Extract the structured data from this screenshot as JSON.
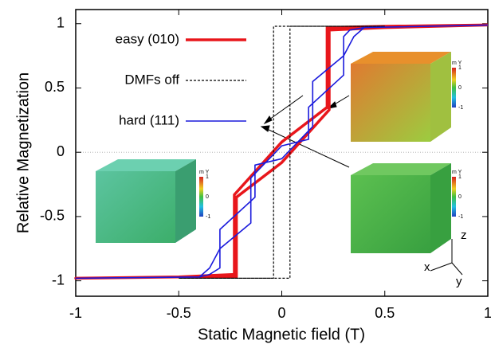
{
  "chart_data": {
    "type": "line",
    "xlabel": "Static Magnetic field (T)",
    "ylabel": "Relative Magnetization",
    "xlim": [
      -1,
      1
    ],
    "ylim": [
      -1.12,
      1.11
    ],
    "xticks": [
      -1,
      -0.5,
      0,
      0.5,
      1
    ],
    "yticks": [
      -1,
      -0.5,
      0,
      0.5,
      1
    ],
    "legend": "upper left",
    "series": [
      {
        "name": "easy (010)",
        "color": "#e8161b",
        "width": 3.5,
        "dash": false,
        "x": [
          1,
          0.5,
          0.22,
          0.22,
          0,
          -0.23,
          -0.23,
          -0.5,
          -1,
          -0.5,
          -0.22,
          -0.22,
          0,
          0.23,
          0.23,
          0.5,
          1
        ],
        "values": [
          0.99,
          0.98,
          0.97,
          0.35,
          0.08,
          -0.33,
          -0.95,
          -0.97,
          -0.98,
          -0.97,
          -0.97,
          -0.35,
          -0.08,
          0.33,
          0.95,
          0.97,
          0.99
        ]
      },
      {
        "name": "DMFs off",
        "color": "#000000",
        "width": 1.2,
        "dash": true,
        "x": [
          0.5,
          -0.04,
          -0.04,
          -0.5,
          0.04,
          0.04,
          0.5
        ],
        "values": [
          0.98,
          0.98,
          -0.98,
          -0.98,
          -0.98,
          0.98,
          0.98
        ]
      },
      {
        "name": "hard (111)",
        "color": "#1a1adc",
        "width": 1.6,
        "dash": false,
        "x": [
          1,
          0.4,
          0.33,
          0.3,
          0.3,
          0.13,
          0.13,
          0,
          -0.15,
          -0.15,
          -0.3,
          -0.35,
          -0.4,
          -1,
          -0.4,
          -0.35,
          -0.3,
          -0.3,
          -0.13,
          -0.13,
          0,
          0.15,
          0.15,
          0.3,
          0.35,
          0.4,
          1
        ],
        "values": [
          0.99,
          0.97,
          0.95,
          0.9,
          0.6,
          0.35,
          0.1,
          0.05,
          -0.2,
          -0.55,
          -0.75,
          -0.9,
          -0.97,
          -0.98,
          -0.97,
          -0.95,
          -0.9,
          -0.6,
          -0.35,
          -0.1,
          -0.05,
          0.2,
          0.55,
          0.75,
          0.9,
          0.97,
          0.99
        ]
      }
    ],
    "insets": [
      {
        "label": "m Y",
        "ticks": [
          "1",
          "0",
          "-1"
        ]
      },
      {
        "label": "m Y",
        "ticks": [
          "1",
          "0",
          "-1"
        ]
      },
      {
        "label": "m Y",
        "ticks": [
          "1",
          "0",
          "-1"
        ]
      }
    ],
    "axes_triad": [
      "x",
      "y",
      "z"
    ]
  }
}
